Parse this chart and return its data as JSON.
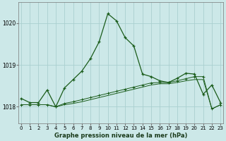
{
  "xlabel": "Graphe pression niveau de la mer (hPa)",
  "background_color": "#cce8e8",
  "grid_color": "#aacfcf",
  "line_color": "#1a5c1a",
  "x_ticks": [
    0,
    1,
    2,
    3,
    4,
    5,
    6,
    7,
    8,
    9,
    10,
    11,
    12,
    13,
    14,
    15,
    16,
    17,
    18,
    19,
    20,
    21,
    22,
    23
  ],
  "ylim": [
    1017.6,
    1020.5
  ],
  "xlim": [
    -0.3,
    23.3
  ],
  "yticks": [
    1018,
    1019,
    1020
  ],
  "line1": [
    1018.2,
    1018.1,
    1018.1,
    1018.4,
    1018.0,
    1018.45,
    1018.65,
    1018.85,
    1019.15,
    1019.55,
    1020.22,
    1020.05,
    1019.65,
    1019.45,
    1018.78,
    1018.72,
    1018.62,
    1018.58,
    1018.68,
    1018.8,
    1018.78,
    1018.3,
    1018.52,
    1018.1
  ],
  "line2": [
    1018.05,
    1018.05,
    1018.05,
    1018.05,
    1018.0,
    1018.08,
    1018.12,
    1018.17,
    1018.22,
    1018.27,
    1018.32,
    1018.37,
    1018.42,
    1018.47,
    1018.52,
    1018.57,
    1018.58,
    1018.58,
    1018.62,
    1018.67,
    1018.72,
    1018.72,
    1017.95,
    1018.05
  ],
  "line3": [
    1018.05,
    1018.05,
    1018.05,
    1018.05,
    1018.0,
    1018.05,
    1018.08,
    1018.12,
    1018.17,
    1018.22,
    1018.27,
    1018.32,
    1018.37,
    1018.42,
    1018.47,
    1018.52,
    1018.55,
    1018.55,
    1018.58,
    1018.62,
    1018.65,
    1018.65,
    1017.95,
    1018.05
  ]
}
